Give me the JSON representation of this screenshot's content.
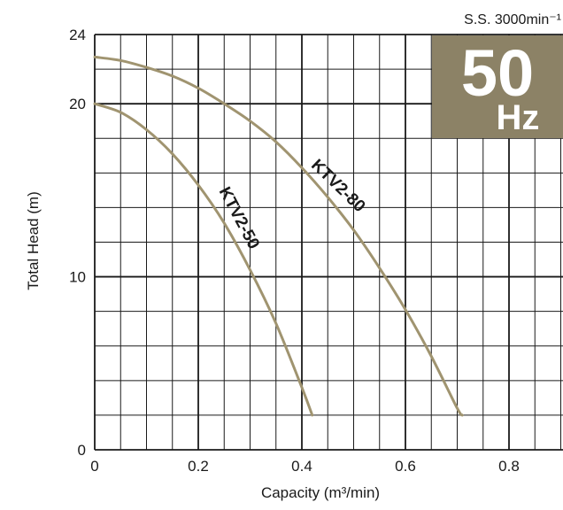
{
  "chart_data": {
    "type": "line",
    "title": "",
    "xlabel": "Capacity (m³/min)",
    "ylabel": "Total Head (m)",
    "xlim": [
      0,
      0.9
    ],
    "ylim": [
      0,
      24
    ],
    "x_ticks": [
      "0",
      "0.2",
      "0.4",
      "0.6",
      "0.8"
    ],
    "y_ticks": [
      "0",
      "10",
      "20",
      "24"
    ],
    "grid": true,
    "speed_label": "S.S. 3000min⁻¹",
    "badge": {
      "number": "50",
      "unit": "Hz",
      "color": "#8c8266"
    },
    "curve_color": "#a09470",
    "series": [
      {
        "name": "KTV2-50",
        "x": [
          0,
          0.05,
          0.1,
          0.15,
          0.2,
          0.25,
          0.3,
          0.35,
          0.4,
          0.42
        ],
        "y": [
          20.0,
          19.5,
          18.5,
          17.1,
          15.3,
          13.1,
          10.4,
          7.3,
          3.6,
          2.0
        ]
      },
      {
        "name": "KTV2-80",
        "x": [
          0,
          0.05,
          0.1,
          0.15,
          0.2,
          0.25,
          0.3,
          0.35,
          0.4,
          0.45,
          0.5,
          0.55,
          0.6,
          0.65,
          0.7,
          0.71
        ],
        "y": [
          22.7,
          22.5,
          22.1,
          21.6,
          20.9,
          20.0,
          19.0,
          17.8,
          16.3,
          14.6,
          12.7,
          10.5,
          8.1,
          5.4,
          2.4,
          2.0
        ]
      }
    ]
  }
}
